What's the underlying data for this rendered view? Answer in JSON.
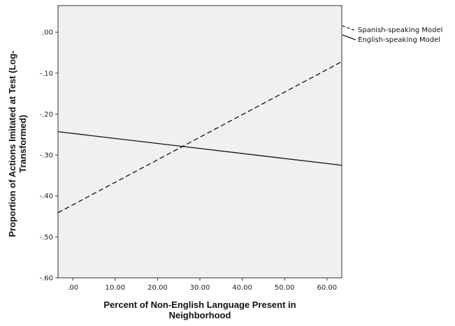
{
  "chart_data": {
    "type": "line",
    "title": "",
    "xlabel_lines": [
      "Percent of Non-English Language Present in",
      "Neighborhood"
    ],
    "ylabel_lines": [
      "Proportion of Actions Imitated at Test (Log-",
      "Transformed)"
    ],
    "xlim": [
      -3.5,
      63.5
    ],
    "ylim": [
      -0.6,
      0.065
    ],
    "x_ticks": [
      0,
      10,
      20,
      30,
      40,
      50,
      60
    ],
    "x_tick_labels": [
      ".00",
      "10.00",
      "20.00",
      "30.00",
      "40.00",
      "50.00",
      "60.00"
    ],
    "y_ticks": [
      0,
      -0.1,
      -0.2,
      -0.3,
      -0.4,
      -0.5,
      -0.6
    ],
    "y_tick_labels": [
      ".00",
      "-.10",
      "-.20",
      "-.30",
      "-.40",
      "-.50",
      "-.60"
    ],
    "grid": false,
    "legend_position": "right-top",
    "series": [
      {
        "name": "Spanish-speaking Model",
        "style": "dashed",
        "color": "#111111",
        "x": [
          -3.5,
          63.5
        ],
        "y": [
          -0.441,
          -0.072
        ]
      },
      {
        "name": "English-speaking Model",
        "style": "solid",
        "color": "#111111",
        "x": [
          -3.5,
          63.5
        ],
        "y": [
          -0.243,
          -0.325
        ]
      }
    ]
  },
  "colors": {
    "plot_background": "#f0f0f0",
    "axis": "#333333",
    "line": "#111111"
  }
}
